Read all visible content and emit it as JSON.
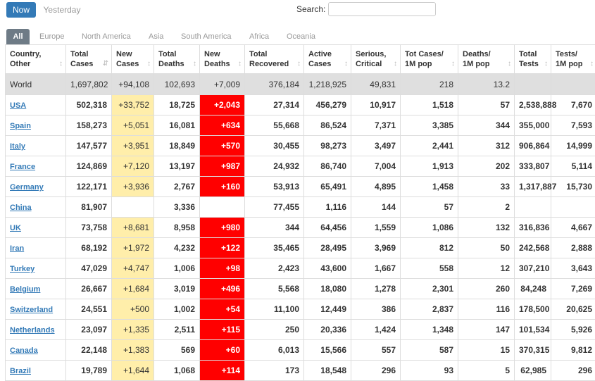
{
  "toolbar": {
    "now_label": "Now",
    "yesterday_label": "Yesterday",
    "search_label": "Search:",
    "search_value": ""
  },
  "tabs": [
    "All",
    "Europe",
    "North America",
    "Asia",
    "South America",
    "Africa",
    "Oceania"
  ],
  "colors": {
    "accent": "#337ab7",
    "new_cases_bg": "#ffeeaa",
    "new_deaths_bg": "#ff0000",
    "world_row_bg": "#dfdfdf"
  },
  "table": {
    "headers": [
      [
        "Country,",
        "Other"
      ],
      [
        "Total",
        "Cases"
      ],
      [
        "New",
        "Cases"
      ],
      [
        "Total",
        "Deaths"
      ],
      [
        "New",
        "Deaths"
      ],
      [
        "Total",
        "Recovered"
      ],
      [
        "Active",
        "Cases"
      ],
      [
        "Serious,",
        "Critical"
      ],
      [
        "Tot Cases/",
        "1M pop"
      ],
      [
        "Deaths/",
        "1M pop"
      ],
      [
        "Total",
        "Tests"
      ],
      [
        "Tests/",
        "1M pop"
      ]
    ],
    "world": [
      "World",
      "1,697,802",
      "+94,108",
      "102,693",
      "+7,009",
      "376,184",
      "1,218,925",
      "49,831",
      "218",
      "13.2",
      "",
      ""
    ],
    "rows": [
      [
        "USA",
        "502,318",
        "+33,752",
        "18,725",
        "+2,043",
        "27,314",
        "456,279",
        "10,917",
        "1,518",
        "57",
        "2,538,888",
        "7,670"
      ],
      [
        "Spain",
        "158,273",
        "+5,051",
        "16,081",
        "+634",
        "55,668",
        "86,524",
        "7,371",
        "3,385",
        "344",
        "355,000",
        "7,593"
      ],
      [
        "Italy",
        "147,577",
        "+3,951",
        "18,849",
        "+570",
        "30,455",
        "98,273",
        "3,497",
        "2,441",
        "312",
        "906,864",
        "14,999"
      ],
      [
        "France",
        "124,869",
        "+7,120",
        "13,197",
        "+987",
        "24,932",
        "86,740",
        "7,004",
        "1,913",
        "202",
        "333,807",
        "5,114"
      ],
      [
        "Germany",
        "122,171",
        "+3,936",
        "2,767",
        "+160",
        "53,913",
        "65,491",
        "4,895",
        "1,458",
        "33",
        "1,317,887",
        "15,730"
      ],
      [
        "China",
        "81,907",
        "",
        "3,336",
        "",
        "77,455",
        "1,116",
        "144",
        "57",
        "2",
        "",
        ""
      ],
      [
        "UK",
        "73,758",
        "+8,681",
        "8,958",
        "+980",
        "344",
        "64,456",
        "1,559",
        "1,086",
        "132",
        "316,836",
        "4,667"
      ],
      [
        "Iran",
        "68,192",
        "+1,972",
        "4,232",
        "+122",
        "35,465",
        "28,495",
        "3,969",
        "812",
        "50",
        "242,568",
        "2,888"
      ],
      [
        "Turkey",
        "47,029",
        "+4,747",
        "1,006",
        "+98",
        "2,423",
        "43,600",
        "1,667",
        "558",
        "12",
        "307,210",
        "3,643"
      ],
      [
        "Belgium",
        "26,667",
        "+1,684",
        "3,019",
        "+496",
        "5,568",
        "18,080",
        "1,278",
        "2,301",
        "260",
        "84,248",
        "7,269"
      ],
      [
        "Switzerland",
        "24,551",
        "+500",
        "1,002",
        "+54",
        "11,100",
        "12,449",
        "386",
        "2,837",
        "116",
        "178,500",
        "20,625"
      ],
      [
        "Netherlands",
        "23,097",
        "+1,335",
        "2,511",
        "+115",
        "250",
        "20,336",
        "1,424",
        "1,348",
        "147",
        "101,534",
        "5,926"
      ],
      [
        "Canada",
        "22,148",
        "+1,383",
        "569",
        "+60",
        "6,013",
        "15,566",
        "557",
        "587",
        "15",
        "370,315",
        "9,812"
      ],
      [
        "Brazil",
        "19,789",
        "+1,644",
        "1,068",
        "+114",
        "173",
        "18,548",
        "296",
        "93",
        "5",
        "62,985",
        "296"
      ]
    ]
  }
}
